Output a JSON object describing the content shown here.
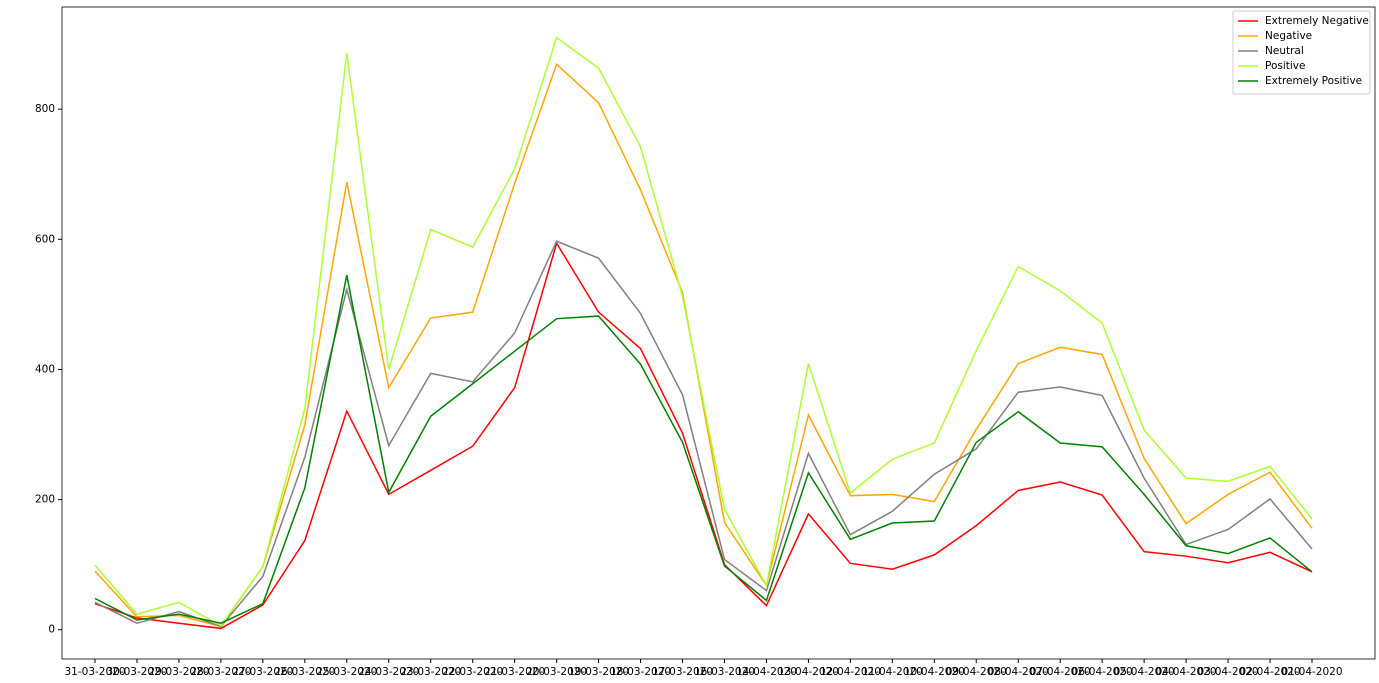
{
  "chart_data": {
    "type": "line",
    "categories": [
      "31-03-2020",
      "30-03-2020",
      "29-03-2020",
      "28-03-2020",
      "27-03-2020",
      "26-03-2020",
      "25-03-2020",
      "24-03-2020",
      "23-03-2020",
      "22-03-2020",
      "21-03-2020",
      "20-03-2020",
      "19-03-2020",
      "18-03-2020",
      "17-03-2020",
      "16-03-2020",
      "14-04-2020",
      "13-04-2020",
      "12-04-2020",
      "11-04-2020",
      "10-04-2020",
      "09-04-2020",
      "08-04-2020",
      "07-04-2020",
      "06-04-2020",
      "05-04-2020",
      "04-04-2020",
      "03-04-2020",
      "02-04-2020",
      "01-04-2020"
    ],
    "series": [
      {
        "name": "Extremely Negative",
        "color": "red",
        "values": [
          40,
          18,
          10,
          2,
          38,
          137,
          336,
          208,
          245,
          282,
          372,
          594,
          488,
          432,
          302,
          100,
          37,
          178,
          102,
          93,
          115,
          160,
          214,
          227,
          207,
          120,
          113,
          103,
          119,
          89
        ]
      },
      {
        "name": "Negative",
        "color": "orange",
        "values": [
          90,
          20,
          22,
          5,
          97,
          315,
          688,
          372,
          479,
          488,
          686,
          869,
          810,
          676,
          518,
          165,
          68,
          330,
          206,
          208,
          197,
          308,
          409,
          434,
          423,
          263,
          163,
          208,
          242,
          156
        ]
      },
      {
        "name": "Neutral",
        "color": "gray",
        "values": [
          42,
          10,
          28,
          5,
          82,
          265,
          523,
          283,
          394,
          381,
          456,
          597,
          571,
          486,
          361,
          108,
          60,
          271,
          146,
          182,
          239,
          278,
          365,
          373,
          360,
          233,
          131,
          154,
          201,
          124
        ]
      },
      {
        "name": "Positive",
        "color": "greenyellow",
        "values": [
          99,
          24,
          42,
          6,
          97,
          340,
          886,
          400,
          615,
          588,
          708,
          910,
          863,
          742,
          512,
          185,
          68,
          409,
          210,
          262,
          287,
          429,
          558,
          521,
          471,
          307,
          233,
          228,
          251,
          170
        ]
      },
      {
        "name": "Extremely Positive",
        "color": "green",
        "values": [
          48,
          15,
          24,
          10,
          40,
          218,
          545,
          211,
          328,
          378,
          428,
          478,
          482,
          408,
          288,
          98,
          45,
          241,
          139,
          164,
          167,
          288,
          335,
          287,
          281,
          208,
          129,
          117,
          141,
          89
        ]
      }
    ],
    "ylim": [
      -45,
      957
    ],
    "yticks": [
      0,
      200,
      400,
      600,
      800
    ],
    "grid": false,
    "legend": "upper right"
  }
}
